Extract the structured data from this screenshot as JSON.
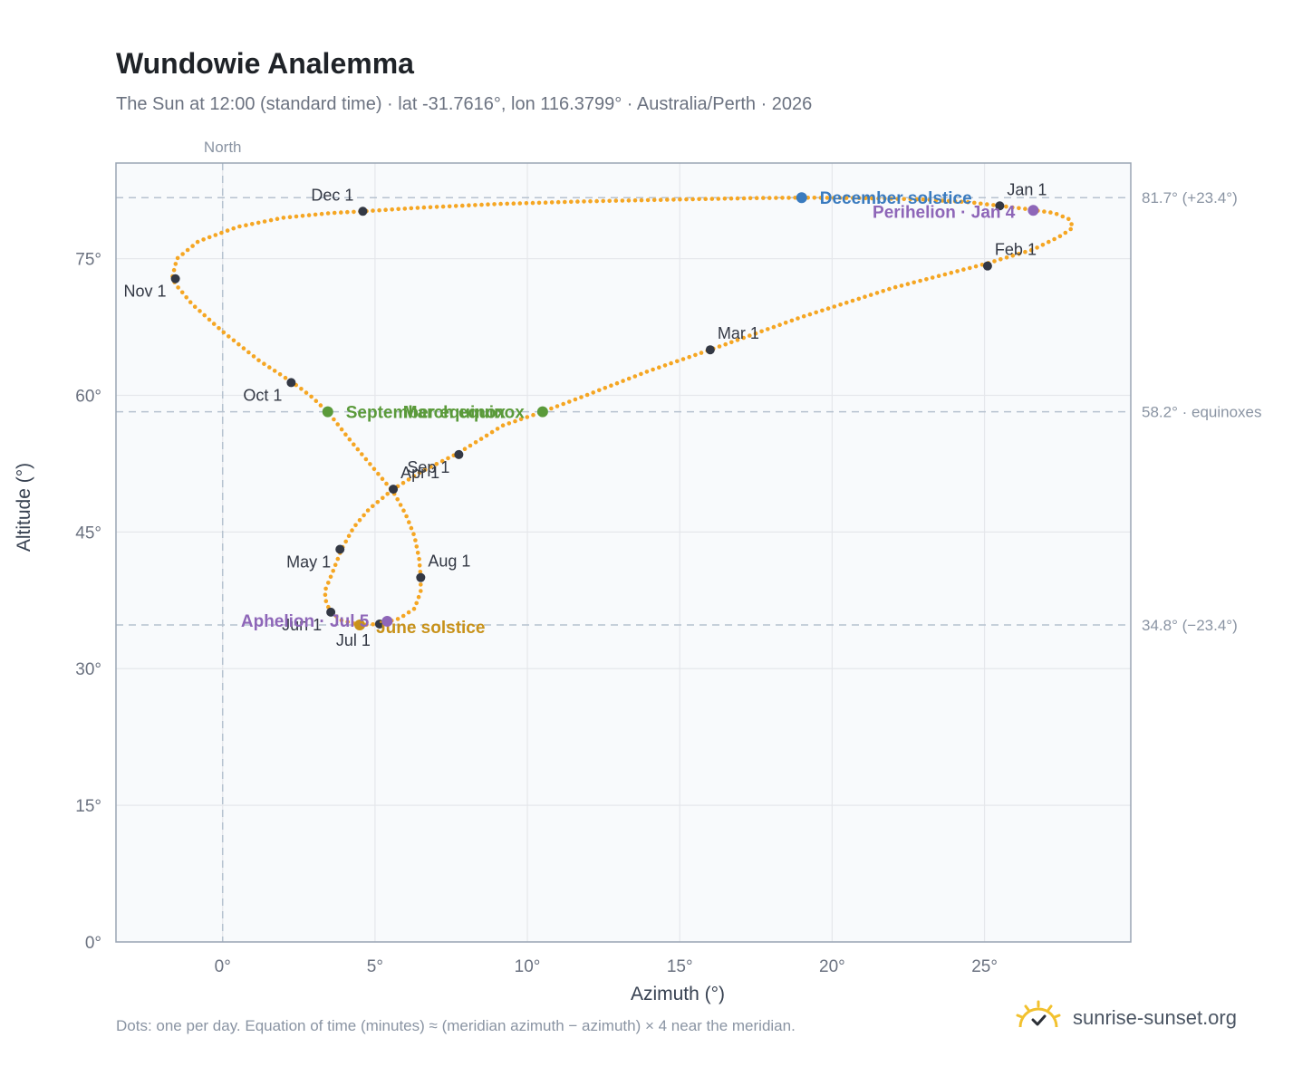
{
  "title": "Wundowie Analemma",
  "subtitle": "The Sun at 12:00 (standard time) · lat -31.7616°, lon 116.3799° · Australia/Perth · 2026",
  "footer_note": "Dots: one per day. Equation of time (minutes) ≈ (meridian azimuth − azimuth) × 4 near the meridian.",
  "brand": {
    "name": "sunrise-sunset.org",
    "icon": "sun-logo-icon"
  },
  "colors": {
    "path": "#f5a623",
    "month_marker": "#333844",
    "equinox": "#5a9a3a",
    "december_solstice": "#3a7bbf",
    "june_solstice": "#c8921a",
    "perihelion_aphelion": "#8e66b8",
    "grid": "#e5e7eb",
    "frame": "#9aa5b4",
    "reference_line": "#b6c2cf",
    "plot_bg": "#f8fafc"
  },
  "chart_data": {
    "type": "scatter",
    "xlabel": "Azimuth (°)",
    "ylabel": "Altitude (°)",
    "xlim": [
      -3.5,
      29.8
    ],
    "ylim": [
      0,
      85.5
    ],
    "x_ticks": [
      {
        "value": 0,
        "label": "0°"
      },
      {
        "value": 5,
        "label": "5°"
      },
      {
        "value": 10,
        "label": "10°"
      },
      {
        "value": 15,
        "label": "15°"
      },
      {
        "value": 20,
        "label": "20°"
      },
      {
        "value": 25,
        "label": "25°"
      }
    ],
    "y_ticks": [
      {
        "value": 0,
        "label": "0°"
      },
      {
        "value": 15,
        "label": "15°"
      },
      {
        "value": 30,
        "label": "30°"
      },
      {
        "value": 45,
        "label": "45°"
      },
      {
        "value": 60,
        "label": "60°"
      },
      {
        "value": 75,
        "label": "75°"
      }
    ],
    "grid": true,
    "vertical_reference": {
      "value": 0,
      "label": "North"
    },
    "horizontal_references": [
      {
        "value": 81.7,
        "label": "81.7° (+23.4°)"
      },
      {
        "value": 58.2,
        "label": "58.2° · equinoxes"
      },
      {
        "value": 34.8,
        "label": "34.8° (−23.4°)"
      }
    ],
    "analemma_path": [
      [
        25.5,
        80.8
      ],
      [
        26.5,
        80.4
      ],
      [
        27.3,
        80.0
      ],
      [
        27.8,
        79.3
      ],
      [
        27.9,
        78.4
      ],
      [
        27.5,
        77.5
      ],
      [
        26.6,
        76.0
      ],
      [
        25.0,
        74.4
      ],
      [
        22.0,
        71.8
      ],
      [
        19.0,
        68.6
      ],
      [
        16.0,
        65.0
      ],
      [
        14.0,
        62.7
      ],
      [
        12.0,
        60.1
      ],
      [
        10.5,
        58.2
      ],
      [
        9.2,
        56.7
      ],
      [
        7.7,
        53.6
      ],
      [
        6.5,
        51.6
      ],
      [
        5.6,
        49.7
      ],
      [
        4.8,
        47.5
      ],
      [
        4.3,
        45.5
      ],
      [
        3.9,
        43.1
      ],
      [
        3.6,
        40.5
      ],
      [
        3.35,
        38.5
      ],
      [
        3.4,
        37.2
      ],
      [
        3.55,
        36.2
      ],
      [
        3.9,
        35.3
      ],
      [
        4.5,
        34.8
      ],
      [
        5.15,
        34.9
      ],
      [
        5.8,
        35.5
      ],
      [
        6.3,
        36.6
      ],
      [
        6.5,
        38.5
      ],
      [
        6.5,
        40.0
      ],
      [
        6.45,
        42.0
      ],
      [
        6.3,
        44.5
      ],
      [
        6.0,
        47.0
      ],
      [
        5.6,
        49.4
      ],
      [
        4.9,
        52.2
      ],
      [
        4.2,
        55.0
      ],
      [
        3.5,
        58.0
      ],
      [
        2.9,
        59.9
      ],
      [
        2.3,
        61.4
      ],
      [
        1.2,
        63.8
      ],
      [
        0.0,
        67.0
      ],
      [
        -1.0,
        70.0
      ],
      [
        -1.55,
        72.2
      ],
      [
        -1.65,
        73.0
      ],
      [
        -1.5,
        75.0
      ],
      [
        -0.8,
        76.9
      ],
      [
        0.5,
        78.5
      ],
      [
        2.0,
        79.5
      ],
      [
        3.5,
        80.0
      ],
      [
        4.6,
        80.2
      ],
      [
        6.5,
        80.6
      ],
      [
        9.0,
        81.0
      ],
      [
        12.0,
        81.3
      ],
      [
        15.0,
        81.5
      ],
      [
        17.5,
        81.65
      ],
      [
        19.0,
        81.7
      ],
      [
        21.0,
        81.65
      ],
      [
        23.0,
        81.5
      ],
      [
        24.5,
        81.2
      ],
      [
        25.5,
        80.8
      ]
    ],
    "month_markers": [
      {
        "label": "Jan 1",
        "x": 25.5,
        "y": 80.8
      },
      {
        "label": "Feb 1",
        "x": 25.1,
        "y": 74.2
      },
      {
        "label": "Mar 1",
        "x": 16.0,
        "y": 65.0
      },
      {
        "label": "Apr 1",
        "x": 5.6,
        "y": 49.7
      },
      {
        "label": "May 1",
        "x": 3.85,
        "y": 43.1
      },
      {
        "label": "Jun 1",
        "x": 3.55,
        "y": 36.2
      },
      {
        "label": "Jul 1",
        "x": 5.15,
        "y": 34.9
      },
      {
        "label": "Aug 1",
        "x": 6.5,
        "y": 40.0
      },
      {
        "label": "Sep 1",
        "x": 7.75,
        "y": 53.5
      },
      {
        "label": "Oct 1",
        "x": 2.25,
        "y": 61.4
      },
      {
        "label": "Nov 1",
        "x": -1.55,
        "y": 72.8
      },
      {
        "label": "Dec 1",
        "x": 4.6,
        "y": 80.2
      }
    ],
    "events": [
      {
        "label": "December solstice",
        "x": 19.0,
        "y": 81.7,
        "kind": "december_solstice"
      },
      {
        "label": "Perihelion · Jan 4",
        "x": 26.6,
        "y": 80.3,
        "kind": "perihelion_aphelion"
      },
      {
        "label": "March equinox",
        "x": 10.5,
        "y": 58.2,
        "kind": "equinox"
      },
      {
        "label": "September equinox",
        "x": 3.45,
        "y": 58.2,
        "kind": "equinox"
      },
      {
        "label": "June solstice",
        "x": 4.5,
        "y": 34.8,
        "kind": "june_solstice"
      },
      {
        "label": "Aphelion · Jul 5",
        "x": 5.4,
        "y": 35.2,
        "kind": "perihelion_aphelion"
      }
    ]
  }
}
